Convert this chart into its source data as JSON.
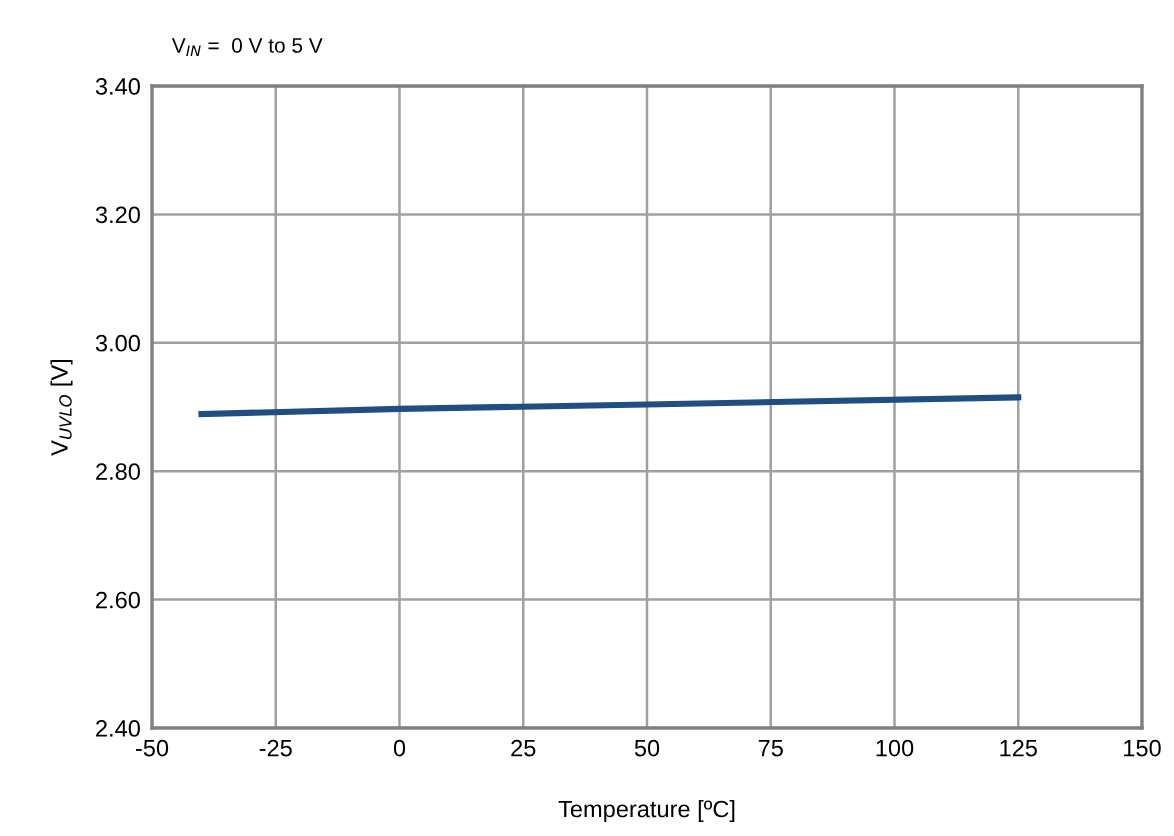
{
  "chart_data": {
    "type": "line",
    "title": "V$_{IN}$ =  0 V to 5 V",
    "xlabel": "Temperature [ºC]",
    "ylabel": "V$_{UVLO}$ [V]",
    "x": [
      -40,
      0,
      50,
      125
    ],
    "series": [
      {
        "color": "#1f4e82",
        "values": [
          2.889,
          2.897,
          2.904,
          2.915
        ]
      }
    ],
    "xlim": [
      -50,
      150
    ],
    "xticks": [
      -50,
      -25,
      0,
      25,
      50,
      75,
      100,
      125,
      150
    ],
    "ylim": [
      2.4,
      3.4
    ],
    "yticks": [
      {
        "value": 2.4,
        "label": "2.40"
      },
      {
        "value": 2.6,
        "label": "2.60"
      },
      {
        "value": 2.8,
        "label": "2.80"
      },
      {
        "value": 3.0,
        "label": "3.00"
      },
      {
        "value": 3.2,
        "label": "3.20"
      },
      {
        "value": 3.4,
        "label": "3.40"
      }
    ],
    "grid": true,
    "legend": false,
    "line_style": "solid",
    "marker": "none"
  }
}
